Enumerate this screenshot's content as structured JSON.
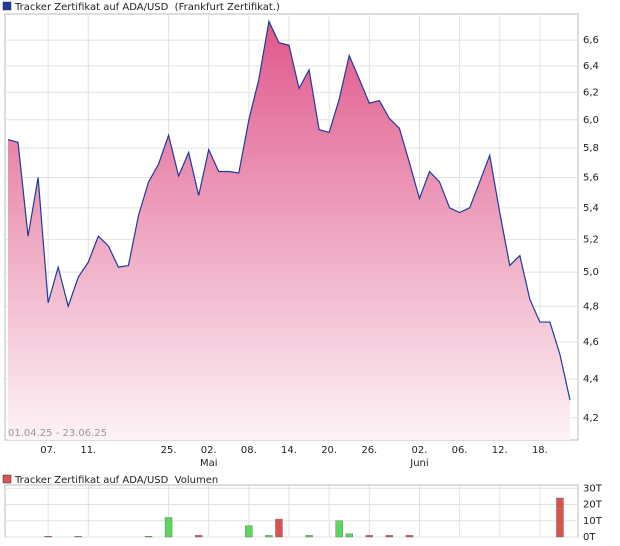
{
  "chart_data": [
    {
      "type": "area",
      "title": "Tracker Zertifikat auf ADA/USD  (Frankfurt Zertifikat.)",
      "date_range": "01.04.25 - 23.06.25",
      "color": "#1c3c9c",
      "fill_top": "#e0578a",
      "fill_bottom": "#fdf3f7",
      "log_scale": true,
      "grid": true,
      "categories": [
        null,
        null,
        null,
        null,
        "07.",
        null,
        null,
        null,
        "11.",
        null,
        null,
        null,
        null,
        null,
        null,
        null,
        "25.",
        null,
        null,
        null,
        "02.",
        null,
        null,
        null,
        "08.",
        null,
        null,
        null,
        "14.",
        null,
        null,
        null,
        "20.",
        null,
        null,
        null,
        "26.",
        null,
        null,
        null,
        null,
        "02.",
        null,
        null,
        null,
        "06.",
        null,
        null,
        null,
        "12.",
        null,
        null,
        null,
        "18.",
        null,
        null,
        null
      ],
      "months": [
        null,
        null,
        null,
        null,
        null,
        null,
        null,
        null,
        null,
        null,
        null,
        null,
        null,
        null,
        null,
        null,
        null,
        null,
        null,
        null,
        "Mai",
        null,
        null,
        null,
        null,
        null,
        null,
        null,
        null,
        null,
        null,
        null,
        null,
        null,
        null,
        null,
        null,
        null,
        null,
        null,
        null,
        "Juni",
        null,
        null,
        null,
        null,
        null,
        null,
        null,
        null,
        null,
        null,
        null,
        null,
        null,
        null,
        null
      ],
      "values": [
        5.86,
        5.84,
        5.22,
        5.6,
        4.82,
        5.03,
        4.8,
        4.97,
        5.06,
        5.22,
        5.16,
        5.03,
        5.04,
        5.35,
        5.57,
        5.69,
        5.89,
        5.61,
        5.77,
        5.48,
        5.79,
        5.64,
        5.64,
        5.63,
        6.0,
        6.3,
        6.75,
        6.58,
        6.56,
        6.23,
        6.37,
        5.93,
        5.91,
        6.15,
        6.48,
        6.3,
        6.12,
        6.14,
        6.01,
        5.94,
        5.7,
        5.46,
        5.64,
        5.57,
        5.4,
        5.37,
        5.4,
        5.57,
        5.75,
        5.37,
        5.04,
        5.1,
        4.84,
        4.71,
        4.71,
        4.53,
        4.29
      ],
      "ylim": [
        4.09,
        6.81
      ],
      "yticks": [
        {
          "value": 4.2,
          "label": "4,2"
        },
        {
          "value": 4.4,
          "label": "4,4"
        },
        {
          "value": 4.6,
          "label": "4,6"
        },
        {
          "value": 4.8,
          "label": "4,8"
        },
        {
          "value": 5.0,
          "label": "5,0"
        },
        {
          "value": 5.2,
          "label": "5,2"
        },
        {
          "value": 5.4,
          "label": "5,4"
        },
        {
          "value": 5.6,
          "label": "5,6"
        },
        {
          "value": 5.8,
          "label": "5,8"
        },
        {
          "value": 6.0,
          "label": "6,0"
        },
        {
          "value": 6.2,
          "label": "6,2"
        },
        {
          "value": 6.4,
          "label": "6,4"
        },
        {
          "value": 6.6,
          "label": "6,6"
        }
      ]
    },
    {
      "type": "bar",
      "title": "Tracker Zertifikat auf ADA/USD  Volumen",
      "legend_color": "#d9534f",
      "up_color": "#5cd65c",
      "down_color": "#d9534f",
      "grid": true,
      "values": [
        null,
        null,
        null,
        null,
        0.5,
        null,
        null,
        0.5,
        null,
        null,
        null,
        null,
        null,
        null,
        0.5,
        null,
        12,
        null,
        null,
        1,
        null,
        null,
        null,
        null,
        7,
        null,
        1,
        11,
        null,
        null,
        1,
        null,
        null,
        10,
        2,
        null,
        1,
        null,
        1,
        null,
        1,
        null,
        null,
        null,
        null,
        null,
        null,
        null,
        null,
        null,
        null,
        null,
        null,
        null,
        null,
        24,
        null
      ],
      "ylim": [
        0,
        32
      ],
      "yticks": [
        {
          "value": 0,
          "label": "0T"
        },
        {
          "value": 10,
          "label": "10T"
        },
        {
          "value": 20,
          "label": "20T"
        },
        {
          "value": 30,
          "label": "30T"
        }
      ]
    }
  ]
}
